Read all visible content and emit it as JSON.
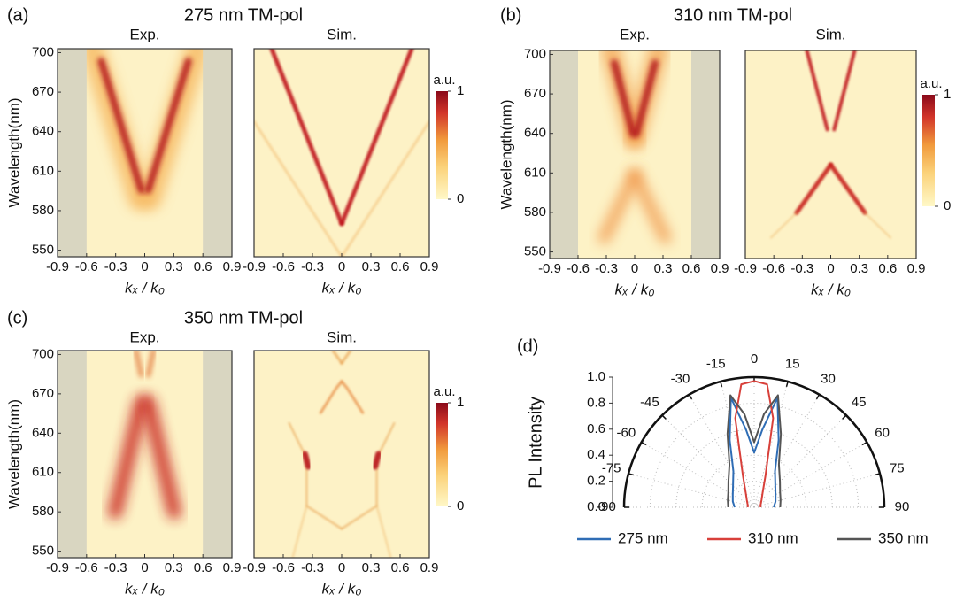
{
  "chart_data": [
    {
      "type": "heatmap",
      "panel_label": "(a)",
      "title": "275 nm TM-pol",
      "subplots": [
        {
          "title": "Exp."
        },
        {
          "title": "Sim."
        }
      ],
      "xlabel": "kₓ / k₀",
      "ylabel": "Wavelength(nm)",
      "xlim": [
        -0.9,
        0.9
      ],
      "xticks": [
        -0.9,
        -0.6,
        -0.3,
        0,
        0.3,
        0.6,
        0.9
      ],
      "ylim": [
        545,
        703
      ],
      "yticks": [
        550,
        580,
        610,
        640,
        670,
        700
      ],
      "colorbar": {
        "label": "a.u.",
        "ticks": [
          0,
          1
        ]
      }
    },
    {
      "type": "heatmap",
      "panel_label": "(b)",
      "title": "310 nm TM-pol",
      "subplots": [
        {
          "title": "Exp."
        },
        {
          "title": "Sim."
        }
      ],
      "xlabel": "kₓ / k₀",
      "ylabel": "Wavelength(nm)",
      "xlim": [
        -0.9,
        0.9
      ],
      "xticks": [
        -0.9,
        -0.6,
        -0.3,
        0,
        0.3,
        0.6,
        0.9
      ],
      "ylim": [
        545,
        703
      ],
      "yticks": [
        550,
        580,
        610,
        640,
        670,
        700
      ],
      "colorbar": {
        "label": "a.u.",
        "ticks": [
          0,
          1
        ]
      }
    },
    {
      "type": "heatmap",
      "panel_label": "(c)",
      "title": "350 nm TM-pol",
      "subplots": [
        {
          "title": "Exp."
        },
        {
          "title": "Sim."
        }
      ],
      "xlabel": "kₓ / k₀",
      "ylabel": "Wavelength(nm)",
      "xlim": [
        -0.9,
        0.9
      ],
      "xticks": [
        -0.9,
        -0.6,
        -0.3,
        0,
        0.3,
        0.6,
        0.9
      ],
      "ylim": [
        545,
        703
      ],
      "yticks": [
        550,
        580,
        610,
        640,
        670,
        700
      ],
      "colorbar": {
        "label": "a.u.",
        "ticks": [
          0,
          1
        ]
      }
    },
    {
      "type": "polar",
      "panel_label": "(d)",
      "ylabel": "PL Intensity",
      "x": [
        -90,
        -75,
        -60,
        -45,
        -30,
        -20,
        -12,
        -6,
        0,
        6,
        12,
        20,
        30,
        45,
        60,
        75,
        90
      ],
      "xlim": [
        -90,
        90
      ],
      "xticks": [
        -90,
        -75,
        -60,
        -45,
        -30,
        -15,
        0,
        15,
        30,
        45,
        60,
        75,
        90
      ],
      "ylim": [
        0,
        1
      ],
      "yticks": [
        {
          "value": 0,
          "label": "0.0"
        },
        0.2,
        0.4,
        0.6,
        0.8,
        {
          "value": 1,
          "label": "1.0"
        }
      ],
      "series": [
        {
          "name": "275 nm",
          "color": "#2f6db5",
          "values": [
            0.15,
            0.17,
            0.19,
            0.23,
            0.32,
            0.55,
            0.86,
            0.6,
            0.42,
            0.6,
            0.86,
            0.55,
            0.32,
            0.23,
            0.19,
            0.17,
            0.15
          ]
        },
        {
          "name": "310 nm",
          "color": "#d8403a",
          "values": [
            0.05,
            0.05,
            0.06,
            0.08,
            0.13,
            0.25,
            0.7,
            0.95,
            0.97,
            0.95,
            0.7,
            0.25,
            0.13,
            0.08,
            0.06,
            0.05,
            0.05
          ]
        },
        {
          "name": "350 nm",
          "color": "#555555",
          "values": [
            0.2,
            0.21,
            0.23,
            0.28,
            0.38,
            0.6,
            0.88,
            0.72,
            0.5,
            0.72,
            0.88,
            0.6,
            0.38,
            0.28,
            0.23,
            0.21,
            0.2
          ]
        }
      ]
    }
  ]
}
